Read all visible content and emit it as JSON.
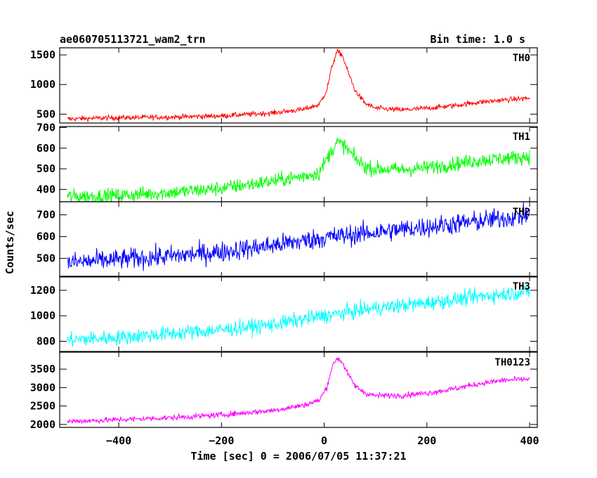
{
  "chart_data": {
    "type": "line",
    "title_left": "ae060705113721_wam2_trn",
    "title_right": "Bin time: 1.0 s",
    "xlabel": "Time [sec] 0 = 2006/07/05 11:37:21",
    "ylabel": "Counts/sec",
    "xlim": [
      -515,
      415
    ],
    "xticks": [
      -400,
      -200,
      0,
      200,
      400
    ],
    "xtick_labels": [
      "−400",
      "−200",
      "0",
      "200",
      "400"
    ],
    "panels": [
      {
        "name": "TH0",
        "color": "#ff0000",
        "ylim": [
          350,
          1620
        ],
        "yticks": [
          500,
          1000,
          1500
        ],
        "ytick_labels": [
          "500",
          "1000",
          "1500"
        ],
        "x": [
          -500,
          -400,
          -300,
          -200,
          -100,
          -40,
          -10,
          5,
          15,
          25,
          35,
          45,
          60,
          80,
          100,
          150,
          200,
          250,
          300,
          350,
          400
        ],
        "y": [
          420,
          440,
          450,
          470,
          520,
          580,
          660,
          900,
          1300,
          1560,
          1500,
          1250,
          900,
          680,
          600,
          570,
          600,
          640,
          700,
          740,
          770
        ],
        "noise": 22
      },
      {
        "name": "TH1",
        "color": "#00ff00",
        "ylim": [
          340,
          705
        ],
        "yticks": [
          400,
          500,
          600,
          700
        ],
        "ytick_labels": [
          "400",
          "500",
          "600",
          "700"
        ],
        "x": [
          -500,
          -400,
          -300,
          -200,
          -100,
          -50,
          -10,
          10,
          25,
          40,
          60,
          80,
          100,
          150,
          200,
          300,
          400
        ],
        "y": [
          365,
          370,
          385,
          405,
          440,
          460,
          480,
          570,
          630,
          610,
          550,
          510,
          500,
          495,
          505,
          540,
          560
        ],
        "noise": 18
      },
      {
        "name": "TH2",
        "color": "#0000ff",
        "ylim": [
          415,
          760
        ],
        "yticks": [
          500,
          600,
          700
        ],
        "ytick_labels": [
          "500",
          "600",
          "700"
        ],
        "x": [
          -500,
          -400,
          -300,
          -200,
          -100,
          0,
          100,
          200,
          300,
          400
        ],
        "y": [
          480,
          495,
          510,
          530,
          560,
          595,
          620,
          645,
          670,
          700
        ],
        "noise": 24
      },
      {
        "name": "TH3",
        "color": "#00ffff",
        "ylim": [
          720,
          1310
        ],
        "yticks": [
          800,
          1000,
          1200
        ],
        "ytick_labels": [
          "800",
          "1000",
          "1200"
        ],
        "x": [
          -500,
          -400,
          -300,
          -200,
          -100,
          0,
          100,
          200,
          300,
          400
        ],
        "y": [
          810,
          830,
          860,
          890,
          930,
          1000,
          1060,
          1100,
          1150,
          1190
        ],
        "noise": 30
      },
      {
        "name": "TH0123",
        "color": "#ff00ff",
        "ylim": [
          1920,
          3960
        ],
        "yticks": [
          2000,
          2500,
          3000,
          3500
        ],
        "ytick_labels": [
          "2000",
          "2500",
          "3000",
          "3500"
        ],
        "x": [
          -500,
          -400,
          -300,
          -200,
          -100,
          -40,
          -10,
          5,
          15,
          25,
          35,
          45,
          60,
          80,
          100,
          150,
          200,
          250,
          300,
          350,
          400
        ],
        "y": [
          2080,
          2130,
          2180,
          2260,
          2380,
          2520,
          2650,
          3000,
          3550,
          3800,
          3700,
          3400,
          3050,
          2850,
          2780,
          2790,
          2850,
          2960,
          3100,
          3200,
          3230
        ],
        "noise": 38
      }
    ]
  }
}
